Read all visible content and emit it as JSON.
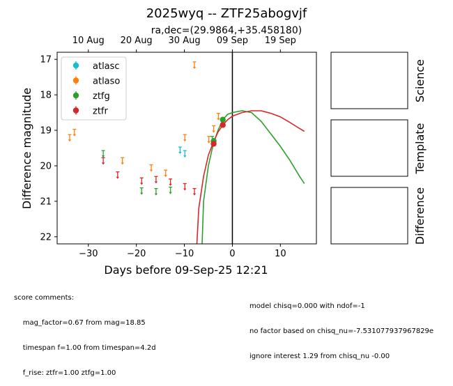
{
  "chart_data": {
    "type": "scatter",
    "title": "2025wyq -- ZTF25abogvjf",
    "subtitle": "ra,dec=(29.9864,+35.458180)",
    "xlabel": "Days before 09-Sep-25 12:21",
    "ylabel": "Difference magnitude",
    "xlim": [
      -36.5,
      17.5
    ],
    "ylim": [
      22.2,
      16.8
    ],
    "y_inverted": true,
    "grid": false,
    "legend_position": "top-left",
    "x_ticks": [
      -30,
      -20,
      -10,
      0,
      10
    ],
    "y_ticks": [
      17,
      18,
      19,
      20,
      21,
      22
    ],
    "top_axis_ticks": [
      {
        "label": "10 Aug",
        "x": -30
      },
      {
        "label": "20 Aug",
        "x": -20
      },
      {
        "label": "30 Aug",
        "x": -10
      },
      {
        "label": "09 Sep",
        "x": 0
      },
      {
        "label": "19 Sep",
        "x": 10
      }
    ],
    "vertical_line_x": 0,
    "series": [
      {
        "name": "atlasc",
        "color": "#17becf",
        "kind": "upper_limit",
        "points": [
          [
            -10.9,
            19.55
          ],
          [
            -9.9,
            19.65
          ]
        ]
      },
      {
        "name": "atlaso",
        "color": "#ff7f0e",
        "kind": "upper_limit",
        "points": [
          [
            -33.9,
            19.2
          ],
          [
            -32.9,
            19.05
          ],
          [
            -22.9,
            19.85
          ],
          [
            -16.9,
            20.05
          ],
          [
            -13.9,
            20.2
          ],
          [
            -9.9,
            19.2
          ],
          [
            -7.9,
            17.15
          ],
          [
            -4.9,
            19.25
          ],
          [
            -3.9,
            18.95
          ],
          [
            -2.9,
            18.6
          ]
        ]
      },
      {
        "name": "ztfg",
        "color": "#2ca02c",
        "kind": "upper_limit",
        "points": [
          [
            -26.9,
            19.65
          ],
          [
            -18.9,
            20.7
          ],
          [
            -15.9,
            20.72
          ],
          [
            -12.9,
            20.68
          ],
          [
            -4.2,
            19.25
          ]
        ]
      },
      {
        "name": "ztfr",
        "color": "#d62728",
        "kind": "upper_limit",
        "points": [
          [
            -26.9,
            19.85
          ],
          [
            -23.9,
            20.25
          ],
          [
            -18.9,
            20.42
          ],
          [
            -15.9,
            20.38
          ],
          [
            -12.9,
            20.45
          ],
          [
            -9.9,
            20.58
          ],
          [
            -7.9,
            20.72
          ]
        ]
      },
      {
        "name": "ztfg",
        "color": "#2ca02c",
        "kind": "detection",
        "points": [
          [
            -3.9,
            19.3
          ],
          [
            -2.0,
            18.7
          ]
        ]
      },
      {
        "name": "ztfr",
        "color": "#d62728",
        "kind": "detection",
        "points": [
          [
            -3.9,
            19.38
          ],
          [
            -2.0,
            18.85
          ]
        ]
      }
    ],
    "models": [
      {
        "name": "ztfg",
        "color": "#2ca02c",
        "points": [
          [
            -6.3,
            22.2
          ],
          [
            -6.0,
            21.0
          ],
          [
            -5.0,
            20.0
          ],
          [
            -4.0,
            19.4
          ],
          [
            -3.0,
            19.0
          ],
          [
            -2.0,
            18.7
          ],
          [
            -1.0,
            18.55
          ],
          [
            0,
            18.5
          ],
          [
            2,
            18.45
          ],
          [
            4,
            18.5
          ],
          [
            6,
            18.75
          ],
          [
            8,
            19.1
          ],
          [
            10,
            19.45
          ],
          [
            12,
            19.85
          ],
          [
            14,
            20.3
          ],
          [
            15,
            20.5
          ]
        ]
      },
      {
        "name": "ztfr",
        "color": "#d62728",
        "points": [
          [
            -7.4,
            22.2
          ],
          [
            -7.0,
            21.2
          ],
          [
            -6.0,
            20.3
          ],
          [
            -5.0,
            19.7
          ],
          [
            -4.0,
            19.35
          ],
          [
            -3.0,
            19.05
          ],
          [
            -2.0,
            18.85
          ],
          [
            -1.0,
            18.7
          ],
          [
            0,
            18.6
          ],
          [
            2,
            18.5
          ],
          [
            4,
            18.45
          ],
          [
            6,
            18.45
          ],
          [
            8,
            18.52
          ],
          [
            10,
            18.62
          ],
          [
            12,
            18.78
          ],
          [
            14,
            18.95
          ],
          [
            15,
            19.03
          ]
        ]
      }
    ],
    "side_panels": [
      "Science",
      "Template",
      "Difference"
    ]
  },
  "comments": {
    "left": [
      "score comments:",
      "    mag_factor=0.67 from mag=18.85",
      "    timespan f=1.00 from timespan=4.2d",
      "    f_rise: ztfr=1.00 ztfg=1.00"
    ],
    "right": [
      "model chisq=0.000 with ndof=-1",
      "no factor based on chisq_nu=-7.531077937967829e",
      "ignore interest 1.29 from chisq_nu -0.00"
    ]
  }
}
